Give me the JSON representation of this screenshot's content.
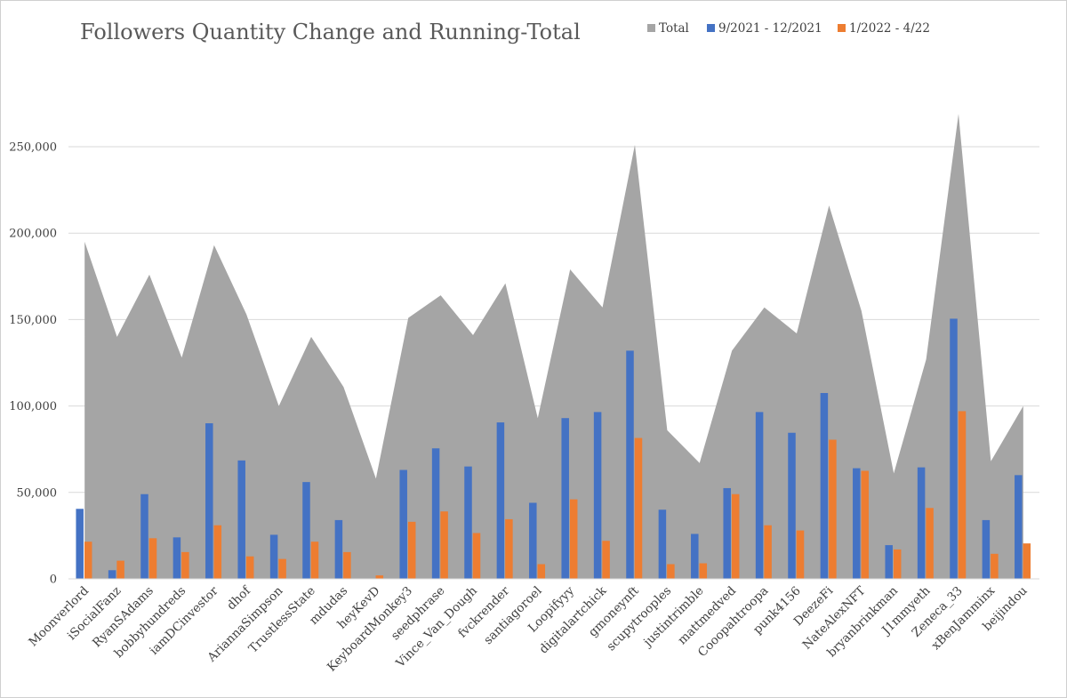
{
  "chart_data": {
    "type": "bar",
    "title": "Followers Quantity Change and Running-Total",
    "xlabel": "",
    "ylabel": "",
    "ylim": [
      0,
      270000
    ],
    "yticks": [
      0,
      50000,
      100000,
      150000,
      200000,
      250000
    ],
    "ytick_labels": [
      "0",
      "50,000",
      "100,000",
      "150,000",
      "200,000",
      "250,000"
    ],
    "grid": true,
    "legend_position": "top-right",
    "categories": [
      "Moonverlord",
      "iSocialFanz",
      "RyanSAdams",
      "bobbyhundreds",
      "iamDCinvestor",
      "dhof",
      "AriannaSimpson",
      "TrustlessState",
      "mdudas",
      "heyKevD",
      "KeyboardMonkey3",
      "seedphrase",
      "Vince_Van_Dough",
      "fvckrender",
      "santiagoroel",
      "Loopifyyy",
      "digitalartchick",
      "gmoneynft",
      "scupytrooples",
      "justintrimble",
      "mattmedved",
      "Cooopahtroopa",
      "punk4156",
      "DeezeFi",
      "NateAlexNFT",
      "bryanbrinkman",
      "J1mmyeth",
      "Zeneca_33",
      "xBenJamminx",
      "beijindou"
    ],
    "series": [
      {
        "name": "Total",
        "kind": "area",
        "color": "#a5a5a5",
        "values": [
          195000,
          140000,
          176000,
          128000,
          193000,
          153000,
          100000,
          140000,
          111000,
          58000,
          151000,
          164000,
          141000,
          171000,
          93000,
          179000,
          157000,
          251000,
          86000,
          67000,
          132000,
          157000,
          142000,
          216000,
          155000,
          61000,
          127000,
          269000,
          68000,
          100000
        ]
      },
      {
        "name": "9/2021 - 12/2021",
        "kind": "bar",
        "color": "#4472c4",
        "values": [
          40500,
          5000,
          49000,
          24000,
          90000,
          68500,
          25500,
          56000,
          34000,
          0,
          63000,
          75500,
          65000,
          90500,
          44000,
          93000,
          96500,
          132000,
          40000,
          26000,
          52500,
          96500,
          84500,
          107500,
          64000,
          19500,
          64500,
          150500,
          34000,
          60000
        ]
      },
      {
        "name": "1/2022 - 4/22",
        "kind": "bar",
        "color": "#ed7d31",
        "values": [
          21500,
          10500,
          23500,
          15500,
          31000,
          13000,
          11500,
          21500,
          15500,
          2000,
          33000,
          39000,
          26500,
          34500,
          8500,
          46000,
          22000,
          81500,
          8500,
          9000,
          49000,
          31000,
          28000,
          80500,
          62500,
          17000,
          41000,
          97000,
          14500,
          20500
        ]
      }
    ]
  }
}
